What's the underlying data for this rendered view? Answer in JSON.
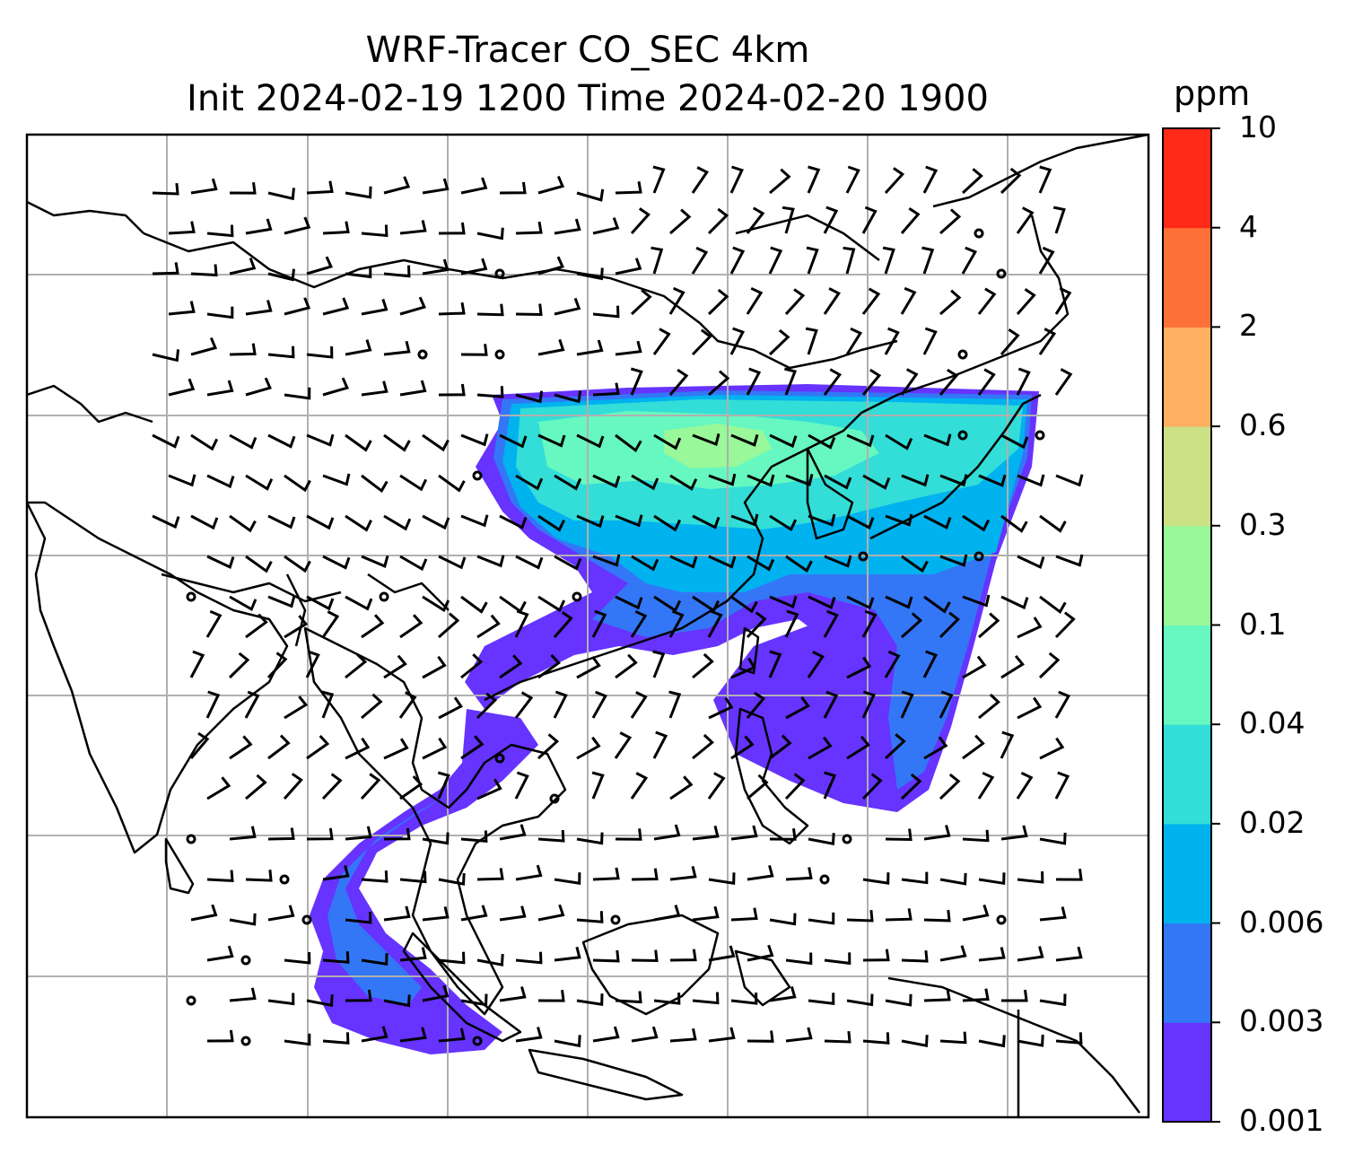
{
  "title_line1": "WRF-Tracer CO_SEC 4km",
  "title_line2": "Init 2024-02-19 1200 Time 2024-02-20 1900",
  "colorbar": {
    "unit": "ppm",
    "levels": [
      "0.001",
      "0.003",
      "0.006",
      "0.02",
      "0.04",
      "0.1",
      "0.3",
      "0.6",
      "2",
      "4",
      "10"
    ],
    "colors": [
      "#6633ff",
      "#3377f7",
      "#00b2ee",
      "#33ddd8",
      "#66f8c0",
      "#99f899",
      "#cce086",
      "#ffb060",
      "#ff7038",
      "#ff2a18"
    ]
  },
  "map": {
    "gridlines": true,
    "features": [
      "coastlines",
      "country-borders",
      "wind-barbs",
      "co-tracer-plume"
    ]
  }
}
